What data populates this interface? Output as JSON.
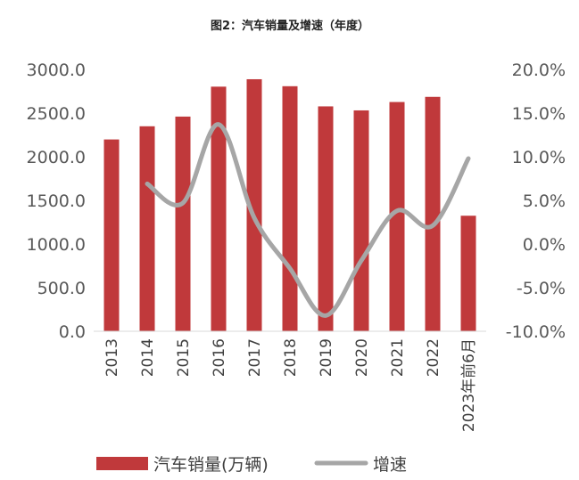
{
  "chart_data": {
    "type": "bar",
    "title": "图2：汽车销量及增速（年度）",
    "categories": [
      "2013",
      "2014",
      "2015",
      "2016",
      "2017",
      "2018",
      "2019",
      "2020",
      "2021",
      "2022",
      "2023年前6月"
    ],
    "series": [
      {
        "name": "汽车销量(万辆)",
        "type": "bar",
        "axis": "left",
        "color": "#c0393b",
        "values": [
          2198,
          2349,
          2460,
          2803,
          2888,
          2808,
          2577,
          2531,
          2627,
          2686,
          1324
        ]
      },
      {
        "name": "增速",
        "type": "line",
        "axis": "right",
        "color": "#a6a6a6",
        "values": [
          null,
          6.9,
          4.7,
          13.7,
          3.0,
          -2.8,
          -8.2,
          -1.9,
          3.8,
          2.1,
          9.8
        ]
      }
    ],
    "y_left": {
      "ylim": [
        0,
        3000
      ],
      "ticks": [
        "0.0",
        "500.0",
        "1000.0",
        "1500.0",
        "2000.0",
        "2500.0",
        "3000.0"
      ]
    },
    "y_right": {
      "ylim": [
        -10,
        20
      ],
      "ticks": [
        "-10.0%",
        "-5.0%",
        "0.0%",
        "5.0%",
        "10.0%",
        "15.0%",
        "20.0%"
      ]
    },
    "grid": false,
    "legend": "bottom"
  }
}
